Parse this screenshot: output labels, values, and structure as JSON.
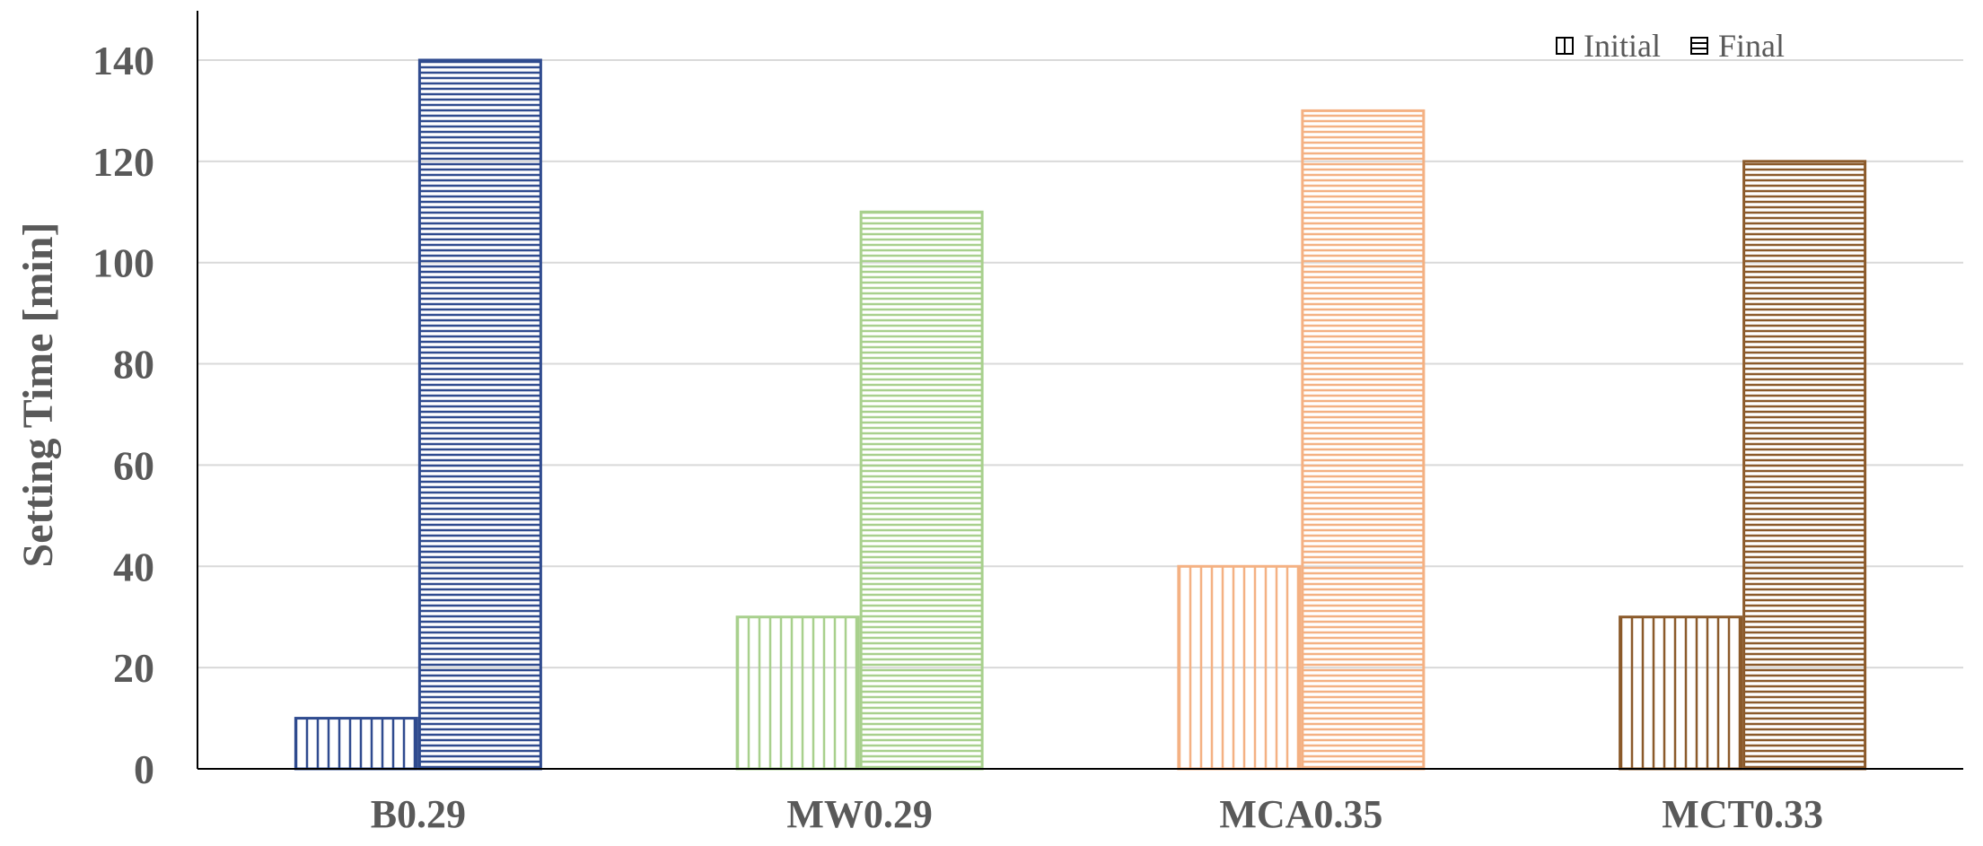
{
  "chart_data": {
    "type": "bar",
    "title": "",
    "xlabel": "",
    "ylabel": "Setting Time [min]",
    "ylim": [
      0,
      150
    ],
    "yticks": [
      0,
      20,
      40,
      60,
      80,
      100,
      120,
      140
    ],
    "categories": [
      "B0.29",
      "MW0.29",
      "MCA0.35",
      "MCT0.33"
    ],
    "category_colors": [
      "#2F4B8F",
      "#A8D08D",
      "#F4B183",
      "#8B5A2B"
    ],
    "series": [
      {
        "name": "Initial",
        "values": [
          10,
          30,
          40,
          30
        ],
        "pattern": "vertical-lines"
      },
      {
        "name": "Final",
        "values": [
          140,
          110,
          130,
          120
        ],
        "pattern": "horizontal-lines"
      }
    ],
    "grid": true,
    "legend_position": "top-right"
  }
}
